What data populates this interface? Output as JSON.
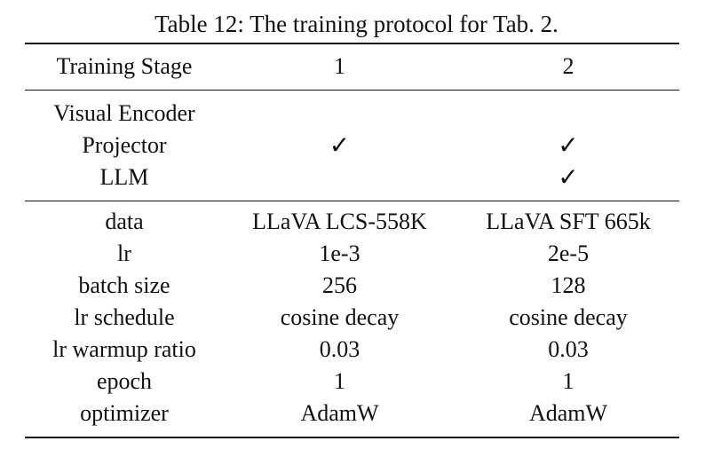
{
  "caption": "Table 12: The training protocol for Tab. 2.",
  "header": {
    "label": "Training Stage",
    "stage1": "1",
    "stage2": "2"
  },
  "modules": [
    {
      "name": "Visual Encoder",
      "stage1": "",
      "stage2": ""
    },
    {
      "name": "Projector",
      "stage1": "✓",
      "stage2": "✓"
    },
    {
      "name": "LLM",
      "stage1": "",
      "stage2": "✓"
    }
  ],
  "hyperparameters": [
    {
      "name": "data",
      "stage1": "LLaVA LCS-558K",
      "stage2": "LLaVA SFT 665k"
    },
    {
      "name": "lr",
      "stage1": "1e-3",
      "stage2": "2e-5"
    },
    {
      "name": "batch size",
      "stage1": "256",
      "stage2": "128"
    },
    {
      "name": "lr schedule",
      "stage1": "cosine decay",
      "stage2": "cosine decay"
    },
    {
      "name": "lr warmup ratio",
      "stage1": "0.03",
      "stage2": "0.03"
    },
    {
      "name": "epoch",
      "stage1": "1",
      "stage2": "1"
    },
    {
      "name": "optimizer",
      "stage1": "AdamW",
      "stage2": "AdamW"
    }
  ]
}
